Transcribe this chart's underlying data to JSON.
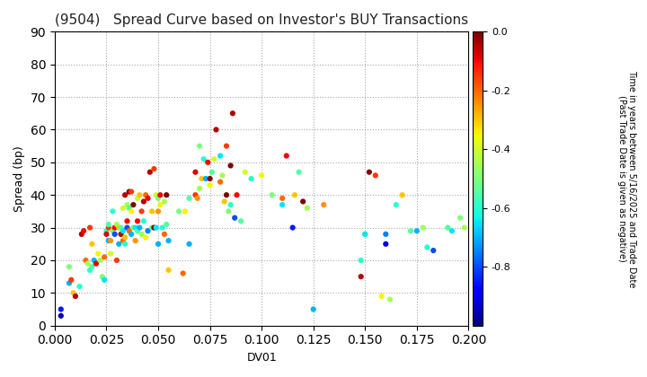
{
  "title": "(9504)   Spread Curve based on Investor's BUY Transactions",
  "xlabel": "DV01",
  "ylabel": "Spread (bp)",
  "xlim": [
    0.0,
    0.2
  ],
  "ylim": [
    0,
    90
  ],
  "xticks": [
    0.0,
    0.025,
    0.05,
    0.075,
    0.1,
    0.125,
    0.15,
    0.175,
    0.2
  ],
  "yticks": [
    0,
    10,
    20,
    30,
    40,
    50,
    60,
    70,
    80,
    90
  ],
  "colorbar_label1": "Time in years between 5/16/2025 and Trade Date",
  "colorbar_label2": "(Past Trade Date is given as negative)",
  "colorbar_ticks": [
    0.0,
    -0.2,
    -0.4,
    -0.6,
    -0.8
  ],
  "vmin": -1.0,
  "vmax": 0.0,
  "points": [
    [
      0.003,
      5,
      -0.85
    ],
    [
      0.003,
      3,
      -0.95
    ],
    [
      0.007,
      18,
      -0.5
    ],
    [
      0.007,
      13,
      -0.7
    ],
    [
      0.008,
      14,
      -0.15
    ],
    [
      0.009,
      10,
      -0.3
    ],
    [
      0.01,
      9,
      -0.05
    ],
    [
      0.012,
      12,
      -0.6
    ],
    [
      0.013,
      28,
      -0.05
    ],
    [
      0.014,
      29,
      -0.1
    ],
    [
      0.015,
      20,
      -0.2
    ],
    [
      0.016,
      19,
      -0.45
    ],
    [
      0.017,
      30,
      -0.15
    ],
    [
      0.017,
      17,
      -0.6
    ],
    [
      0.018,
      18,
      -0.55
    ],
    [
      0.018,
      25,
      -0.3
    ],
    [
      0.019,
      20,
      -0.7
    ],
    [
      0.02,
      19,
      -0.08
    ],
    [
      0.021,
      22,
      -0.35
    ],
    [
      0.022,
      20,
      -0.45
    ],
    [
      0.023,
      15,
      -0.5
    ],
    [
      0.024,
      14,
      -0.65
    ],
    [
      0.024,
      21,
      -0.2
    ],
    [
      0.025,
      29,
      -0.6
    ],
    [
      0.025,
      28,
      -0.08
    ],
    [
      0.026,
      30,
      -0.15
    ],
    [
      0.026,
      26,
      -0.7
    ],
    [
      0.026,
      31,
      -0.55
    ],
    [
      0.027,
      26,
      -0.25
    ],
    [
      0.027,
      22,
      -0.4
    ],
    [
      0.028,
      29,
      -0.5
    ],
    [
      0.028,
      35,
      -0.6
    ],
    [
      0.029,
      30,
      -0.1
    ],
    [
      0.029,
      28,
      -0.8
    ],
    [
      0.03,
      20,
      -0.15
    ],
    [
      0.03,
      31,
      -0.45
    ],
    [
      0.031,
      25,
      -0.7
    ],
    [
      0.031,
      30,
      -0.3
    ],
    [
      0.032,
      28,
      -0.05
    ],
    [
      0.032,
      30,
      -0.55
    ],
    [
      0.033,
      26,
      -0.2
    ],
    [
      0.033,
      29,
      -0.65
    ],
    [
      0.033,
      36,
      -0.4
    ],
    [
      0.034,
      40,
      -0.05
    ],
    [
      0.034,
      27,
      -0.3
    ],
    [
      0.034,
      25,
      -0.6
    ],
    [
      0.035,
      30,
      -0.8
    ],
    [
      0.035,
      32,
      -0.1
    ],
    [
      0.035,
      37,
      -0.45
    ],
    [
      0.036,
      29,
      -0.2
    ],
    [
      0.036,
      36,
      -0.55
    ],
    [
      0.036,
      41,
      -0.0
    ],
    [
      0.037,
      28,
      -0.7
    ],
    [
      0.037,
      35,
      -0.35
    ],
    [
      0.037,
      41,
      -0.15
    ],
    [
      0.038,
      30,
      -0.5
    ],
    [
      0.038,
      37,
      -0.0
    ],
    [
      0.039,
      26,
      -0.25
    ],
    [
      0.039,
      30,
      -0.65
    ],
    [
      0.04,
      39,
      -0.4
    ],
    [
      0.04,
      32,
      -0.1
    ],
    [
      0.04,
      29,
      -0.55
    ],
    [
      0.041,
      40,
      -0.3
    ],
    [
      0.041,
      30,
      -0.7
    ],
    [
      0.042,
      35,
      -0.15
    ],
    [
      0.042,
      28,
      -0.45
    ],
    [
      0.043,
      38,
      -0.05
    ],
    [
      0.043,
      32,
      -0.6
    ],
    [
      0.044,
      27,
      -0.35
    ],
    [
      0.044,
      40,
      -0.2
    ],
    [
      0.045,
      29,
      -0.75
    ],
    [
      0.045,
      39,
      -0.1
    ],
    [
      0.046,
      47,
      -0.05
    ],
    [
      0.047,
      30,
      -0.55
    ],
    [
      0.047,
      35,
      -0.3
    ],
    [
      0.048,
      30,
      -0.0
    ],
    [
      0.048,
      48,
      -0.15
    ],
    [
      0.049,
      30,
      -0.65
    ],
    [
      0.049,
      40,
      -0.4
    ],
    [
      0.05,
      35,
      -0.25
    ],
    [
      0.05,
      39,
      -0.5
    ],
    [
      0.05,
      25,
      -0.7
    ],
    [
      0.051,
      40,
      -0.1
    ],
    [
      0.051,
      37,
      -0.35
    ],
    [
      0.052,
      30,
      -0.6
    ],
    [
      0.053,
      28,
      -0.2
    ],
    [
      0.053,
      38,
      -0.45
    ],
    [
      0.054,
      40,
      -0.0
    ],
    [
      0.054,
      31,
      -0.55
    ],
    [
      0.055,
      17,
      -0.3
    ],
    [
      0.055,
      26,
      -0.7
    ],
    [
      0.06,
      35,
      -0.5
    ],
    [
      0.062,
      16,
      -0.2
    ],
    [
      0.063,
      35,
      -0.35
    ],
    [
      0.065,
      39,
      -0.55
    ],
    [
      0.065,
      25,
      -0.7
    ],
    [
      0.068,
      47,
      -0.08
    ],
    [
      0.068,
      40,
      -0.15
    ],
    [
      0.069,
      39,
      -0.25
    ],
    [
      0.07,
      42,
      -0.45
    ],
    [
      0.07,
      55,
      -0.5
    ],
    [
      0.071,
      45,
      -0.3
    ],
    [
      0.072,
      51,
      -0.6
    ],
    [
      0.073,
      45,
      -0.7
    ],
    [
      0.074,
      50,
      -0.1
    ],
    [
      0.075,
      45,
      -0.0
    ],
    [
      0.075,
      43,
      -0.35
    ],
    [
      0.076,
      47,
      -0.55
    ],
    [
      0.077,
      51,
      -0.4
    ],
    [
      0.078,
      60,
      -0.05
    ],
    [
      0.08,
      44,
      -0.2
    ],
    [
      0.08,
      52,
      -0.65
    ],
    [
      0.081,
      46,
      -0.45
    ],
    [
      0.082,
      38,
      -0.3
    ],
    [
      0.083,
      40,
      -0.0
    ],
    [
      0.083,
      55,
      -0.15
    ],
    [
      0.084,
      35,
      -0.5
    ],
    [
      0.085,
      37,
      -0.6
    ],
    [
      0.085,
      49,
      -0.0
    ],
    [
      0.086,
      65,
      -0.05
    ],
    [
      0.087,
      33,
      -0.8
    ],
    [
      0.088,
      40,
      -0.1
    ],
    [
      0.09,
      32,
      -0.55
    ],
    [
      0.092,
      47,
      -0.4
    ],
    [
      0.095,
      45,
      -0.6
    ],
    [
      0.1,
      46,
      -0.35
    ],
    [
      0.105,
      40,
      -0.5
    ],
    [
      0.11,
      39,
      -0.2
    ],
    [
      0.11,
      37,
      -0.65
    ],
    [
      0.112,
      52,
      -0.1
    ],
    [
      0.115,
      30,
      -0.85
    ],
    [
      0.116,
      40,
      -0.3
    ],
    [
      0.118,
      47,
      -0.55
    ],
    [
      0.12,
      38,
      -0.0
    ],
    [
      0.122,
      36,
      -0.45
    ],
    [
      0.125,
      5,
      -0.7
    ],
    [
      0.13,
      37,
      -0.25
    ],
    [
      0.148,
      20,
      -0.6
    ],
    [
      0.148,
      15,
      -0.05
    ],
    [
      0.15,
      28,
      -0.5
    ],
    [
      0.15,
      28,
      -0.65
    ],
    [
      0.152,
      47,
      -0.0
    ],
    [
      0.155,
      46,
      -0.15
    ],
    [
      0.158,
      9,
      -0.35
    ],
    [
      0.16,
      28,
      -0.75
    ],
    [
      0.16,
      25,
      -0.9
    ],
    [
      0.162,
      8,
      -0.45
    ],
    [
      0.165,
      37,
      -0.6
    ],
    [
      0.168,
      40,
      -0.3
    ],
    [
      0.172,
      29,
      -0.55
    ],
    [
      0.175,
      29,
      -0.7
    ],
    [
      0.178,
      30,
      -0.45
    ],
    [
      0.18,
      24,
      -0.6
    ],
    [
      0.183,
      23,
      -0.8
    ],
    [
      0.19,
      30,
      -0.55
    ],
    [
      0.192,
      29,
      -0.65
    ],
    [
      0.196,
      33,
      -0.5
    ],
    [
      0.198,
      30,
      -0.45
    ]
  ]
}
